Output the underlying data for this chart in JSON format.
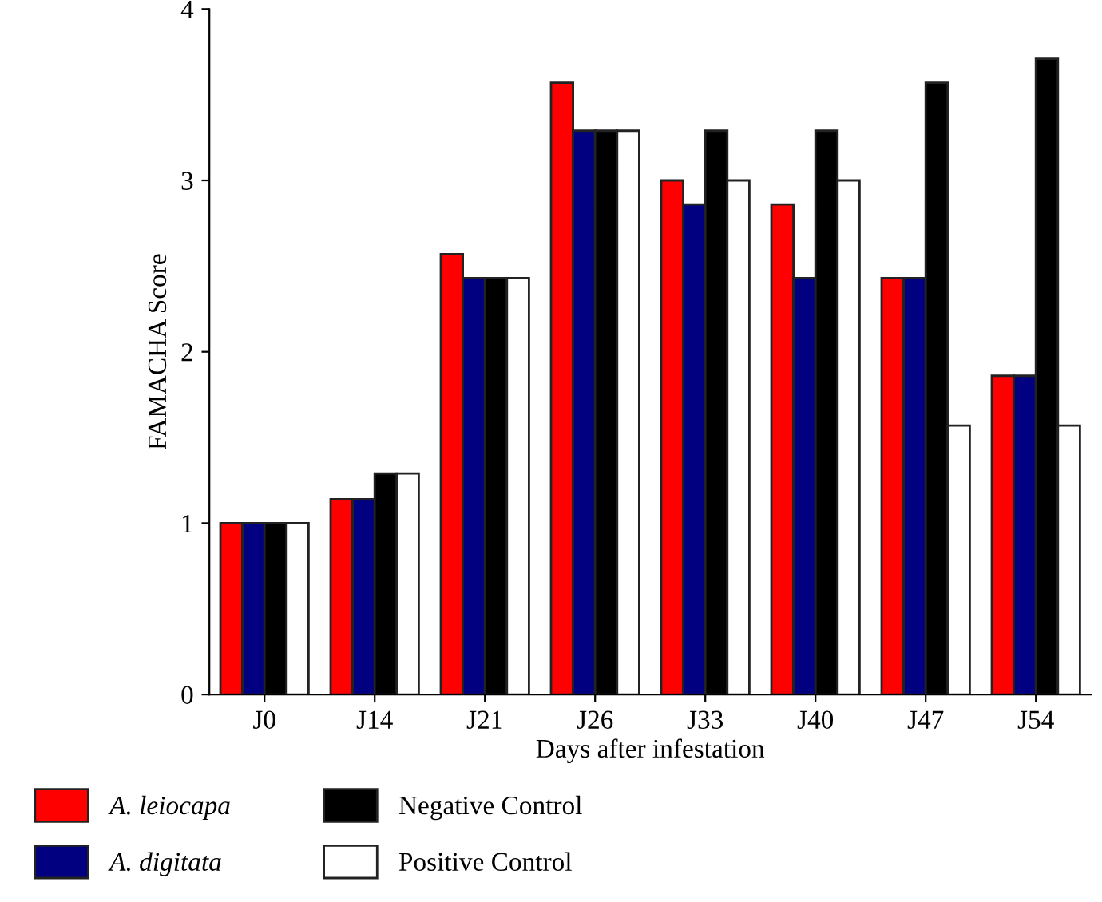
{
  "chart_data": {
    "type": "bar",
    "xlabel": "Days after infestation",
    "ylabel": "FAMACHA Score",
    "categories": [
      "J0",
      "J14",
      "J21",
      "J26",
      "J33",
      "J40",
      "J47",
      "J54"
    ],
    "series": [
      {
        "name": "A. leiocapa",
        "color": "#ff0000",
        "values": [
          1,
          1.14,
          2.57,
          3.57,
          3.0,
          2.86,
          2.43,
          1.86
        ]
      },
      {
        "name": "A. digitata",
        "color": "#000080",
        "values": [
          1,
          1.14,
          2.43,
          3.29,
          2.86,
          2.43,
          2.43,
          1.86
        ]
      },
      {
        "name": "Negative Control",
        "color": "#000000",
        "values": [
          1,
          1.29,
          2.43,
          3.29,
          3.29,
          3.29,
          3.57,
          3.71
        ]
      },
      {
        "name": "Positive Control",
        "color": "#ffffff",
        "values": [
          1,
          1.29,
          2.43,
          3.29,
          3.0,
          3.0,
          1.57,
          1.57
        ]
      }
    ],
    "ylim": [
      0,
      4
    ],
    "yticks": [
      0,
      1,
      2,
      3,
      4
    ],
    "grid": false,
    "legend": "bottom"
  }
}
